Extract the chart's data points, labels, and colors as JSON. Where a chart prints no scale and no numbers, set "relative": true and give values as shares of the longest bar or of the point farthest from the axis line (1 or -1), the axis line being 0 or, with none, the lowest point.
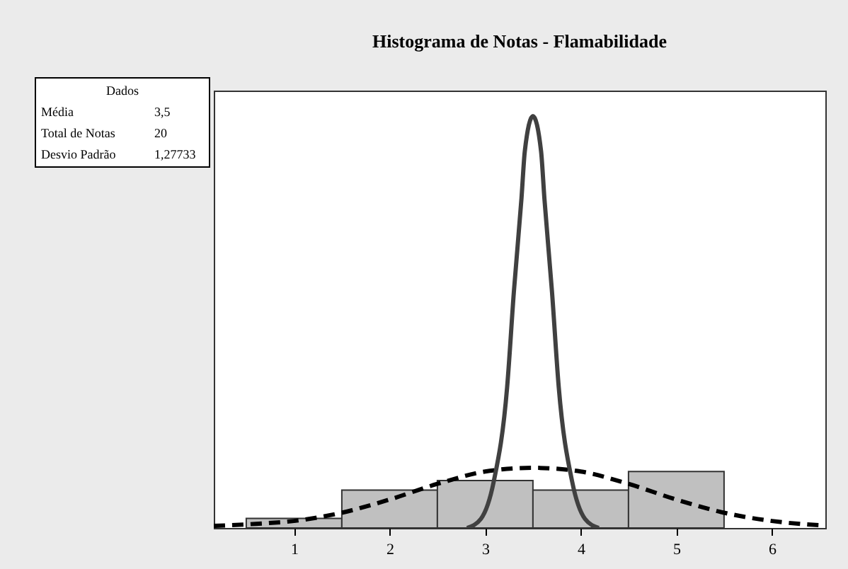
{
  "chart_data": {
    "type": "histogram",
    "title": "Histograma de Notas - Flamabilidade",
    "relative": true,
    "color": "#c0c0c0",
    "bins": [
      0.5,
      1.5,
      2.5,
      3.5,
      4.5,
      5.5
    ],
    "values": [
      0.023,
      0.092,
      0.115,
      0.092,
      0.137
    ],
    "xlim": [
      0.16,
      6.56
    ],
    "xticks": [
      1,
      2,
      3,
      4,
      5,
      6
    ],
    "grid": false,
    "series": [
      {
        "type": "line",
        "color": "#000000",
        "line_style": "dashed",
        "x": [
          0.16,
          0.6,
          1.0,
          1.5,
          2.0,
          2.5,
          3.0,
          3.5,
          4.0,
          4.5,
          5.0,
          5.5,
          6.0,
          6.4,
          6.56
        ],
        "values": [
          0.005,
          0.01,
          0.017,
          0.037,
          0.069,
          0.107,
          0.137,
          0.146,
          0.137,
          0.107,
          0.069,
          0.037,
          0.017,
          0.008,
          0.006
        ]
      },
      {
        "type": "line",
        "color": "#404040",
        "line_style": "solid",
        "x": [
          2.81,
          2.955,
          3.09,
          3.23,
          3.3,
          3.38,
          3.415,
          3.5,
          3.585,
          3.62,
          3.7,
          3.77,
          3.91,
          4.045,
          4.19
        ],
        "values": [
          0,
          0.022,
          0.113,
          0.342,
          0.572,
          0.8,
          0.915,
          1,
          0.915,
          0.8,
          0.572,
          0.342,
          0.113,
          0.022,
          0
        ]
      }
    ],
    "annotations": [
      "Dados",
      "Média",
      "3,5",
      "Total de Notas",
      "20",
      "Desvio Padrão",
      "1,27733"
    ]
  }
}
